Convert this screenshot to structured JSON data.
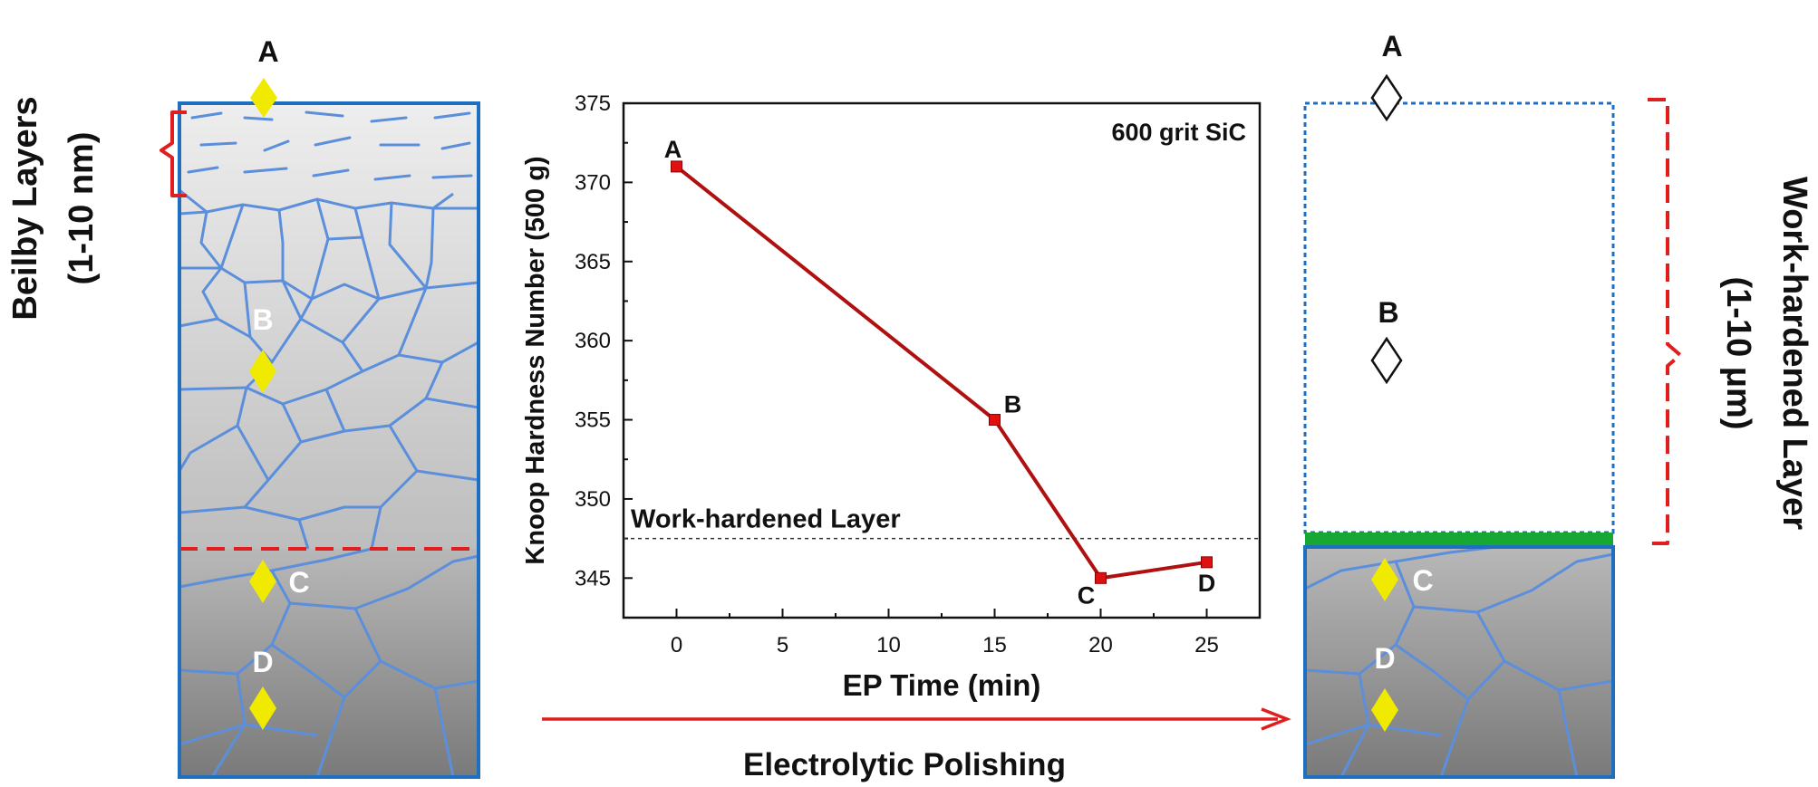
{
  "left_panel": {
    "side_label_line1": "Beilby Layers",
    "side_label_line2": "(1-10 nm)",
    "points": [
      {
        "label": "A",
        "fill": "#f0ea00"
      },
      {
        "label": "B",
        "fill": "#f0ea00"
      },
      {
        "label": "C",
        "fill": "#f0ea00"
      },
      {
        "label": "D",
        "fill": "#f0ea00"
      }
    ]
  },
  "right_panel": {
    "side_label_line1": "Work-hardened Layer",
    "side_label_line2": "(1-10 μm)",
    "points": [
      {
        "label": "A",
        "fill": "#ffffff"
      },
      {
        "label": "B",
        "fill": "#ffffff"
      },
      {
        "label": "C",
        "fill": "#f0ea00"
      },
      {
        "label": "D",
        "fill": "#f0ea00"
      }
    ]
  },
  "process": {
    "arrow_label": "Electrolytic Polishing"
  },
  "colors": {
    "grain_boundary": "#5b8fdc",
    "frame": "#1f6fc0",
    "boundary_line": "#e11d1d",
    "bracket": "#e11d1d",
    "polish_layer": "#16a832",
    "series_line": "#b01010",
    "series_marker": "#e01010"
  },
  "chart_data": {
    "type": "line",
    "xlabel": "EP Time (min)",
    "ylabel": "Knoop Hardness Number (500 g)",
    "annotation": "600 grit SiC",
    "reference_line": {
      "label": "Work-hardened Layer",
      "y": 347.5
    },
    "xlim": [
      -2.5,
      27.5
    ],
    "ylim": [
      342.5,
      375
    ],
    "x_ticks": [
      0,
      5,
      10,
      15,
      20,
      25
    ],
    "y_ticks": [
      345,
      350,
      355,
      360,
      365,
      370,
      375
    ],
    "series": [
      {
        "x": [
          0,
          15,
          20,
          25
        ],
        "y": [
          371,
          355,
          345,
          346
        ],
        "point_labels": [
          "A",
          "B",
          "C",
          "D"
        ]
      }
    ]
  }
}
